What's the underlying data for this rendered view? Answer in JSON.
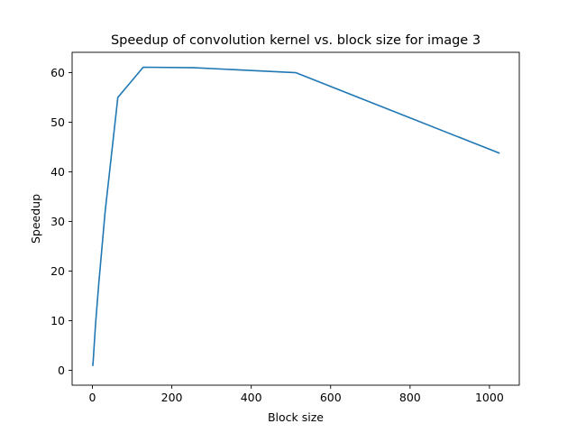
{
  "chart_data": {
    "type": "line",
    "title": "Speedup of convolution kernel vs. block size for image 3",
    "xlabel": "Block size",
    "ylabel": "Speedup",
    "xlim": [
      -51.15,
      1075.15
    ],
    "ylim": [
      -3.0,
      64.1
    ],
    "x_ticks": [
      0,
      200,
      400,
      600,
      800,
      1000
    ],
    "y_ticks": [
      0,
      10,
      20,
      30,
      40,
      50,
      60
    ],
    "grid": false,
    "series": [
      {
        "color": "#1f77b4",
        "x": [
          1,
          2,
          4,
          8,
          16,
          32,
          64,
          128,
          256,
          512,
          1024
        ],
        "y": [
          1.0,
          2.0,
          4.5,
          9.5,
          17.5,
          32.0,
          55.0,
          61.1,
          61.0,
          60.0,
          43.8
        ]
      }
    ]
  }
}
